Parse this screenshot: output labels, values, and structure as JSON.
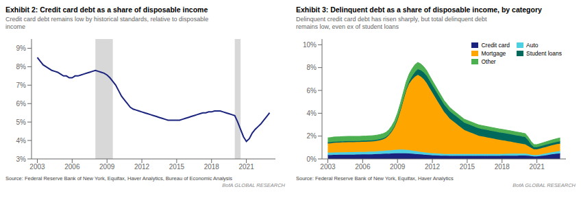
{
  "chart_data": [
    {
      "type": "line",
      "title": "Exhibit 2: Credit card debt as a share of disposable income",
      "subtitle": "Credit card debt remains low by historical standards, relative to disposable\nincome",
      "annotations": [
        "Source: Federal Reserve Bank of New York, Equifax, Haver Analytics, Bureau of Economic Analysis",
        "BofA GLOBAL RESEARCH"
      ],
      "color": "#1a237e",
      "grid": false,
      "xlim": [
        2002.5,
        2023.5
      ],
      "xticks": [
        2003,
        2006,
        2009,
        2012,
        2015,
        2018,
        2021
      ],
      "ylim": [
        3,
        9.5
      ],
      "yticks": [
        {
          "value": 3,
          "label": "3%"
        },
        {
          "value": 4,
          "label": "4%"
        },
        {
          "value": 5,
          "label": "5%"
        },
        {
          "value": 6,
          "label": "6%"
        },
        {
          "value": 7,
          "label": "7%"
        },
        {
          "value": 8,
          "label": "8%"
        },
        {
          "value": 9,
          "label": "9%"
        }
      ],
      "recession_bands": [
        [
          2008.0,
          2009.5
        ],
        [
          2020.0,
          2020.5
        ]
      ],
      "x": [
        2003,
        2003.25,
        2003.5,
        2003.75,
        2004,
        2004.25,
        2004.5,
        2004.75,
        2005,
        2005.25,
        2005.5,
        2005.75,
        2006,
        2006.25,
        2006.5,
        2006.75,
        2007,
        2007.25,
        2007.5,
        2007.75,
        2008,
        2008.25,
        2008.5,
        2008.75,
        2009,
        2009.25,
        2009.5,
        2009.75,
        2010,
        2010.25,
        2010.5,
        2010.75,
        2011,
        2011.25,
        2011.5,
        2011.75,
        2012,
        2012.25,
        2012.5,
        2012.75,
        2013,
        2013.25,
        2013.5,
        2013.75,
        2014,
        2014.25,
        2014.5,
        2014.75,
        2015,
        2015.25,
        2015.5,
        2015.75,
        2016,
        2016.25,
        2016.5,
        2016.75,
        2017,
        2017.25,
        2017.5,
        2017.75,
        2018,
        2018.25,
        2018.5,
        2018.75,
        2019,
        2019.25,
        2019.5,
        2019.75,
        2020,
        2020.25,
        2020.5,
        2020.75,
        2021,
        2021.25,
        2021.5,
        2021.75,
        2022,
        2022.25,
        2022.5,
        2022.75,
        2023
      ],
      "values": [
        8.5,
        8.3,
        8.1,
        8.0,
        7.9,
        7.8,
        7.75,
        7.7,
        7.6,
        7.5,
        7.5,
        7.4,
        7.4,
        7.5,
        7.5,
        7.55,
        7.6,
        7.65,
        7.7,
        7.75,
        7.8,
        7.75,
        7.7,
        7.65,
        7.55,
        7.4,
        7.2,
        7.0,
        6.7,
        6.4,
        6.2,
        6.0,
        5.8,
        5.7,
        5.65,
        5.6,
        5.55,
        5.5,
        5.45,
        5.4,
        5.35,
        5.3,
        5.25,
        5.2,
        5.15,
        5.1,
        5.1,
        5.1,
        5.1,
        5.1,
        5.15,
        5.2,
        5.25,
        5.3,
        5.35,
        5.4,
        5.45,
        5.5,
        5.5,
        5.55,
        5.55,
        5.6,
        5.6,
        5.6,
        5.55,
        5.5,
        5.45,
        5.4,
        5.35,
        5.0,
        4.6,
        4.2,
        3.95,
        4.1,
        4.4,
        4.6,
        4.75,
        4.9,
        5.1,
        5.3,
        5.5
      ]
    },
    {
      "type": "area",
      "stacked": true,
      "title": "Exhibit 3: Delinquent debt as a share of disposable income, by category",
      "subtitle": "Delinquent credit card debt has risen sharply, but total delinquent debt\nremains low, even ex of student loans",
      "annotations": [
        "Source: Federal Reserve Bank of New York, Equifax, Haver Analytics",
        "BofA GLOBAL RESEARCH"
      ],
      "legend": "upper right",
      "xlim": [
        2002.5,
        2023.5
      ],
      "xticks": [
        2003,
        2006,
        2009,
        2012,
        2015,
        2018,
        2021
      ],
      "ylim": [
        0,
        10.5
      ],
      "yticks": [
        {
          "value": 0,
          "label": "0%"
        },
        {
          "value": 2,
          "label": "2%"
        },
        {
          "value": 4,
          "label": "4%"
        },
        {
          "value": 6,
          "label": "6%"
        },
        {
          "value": 8,
          "label": "8%"
        },
        {
          "value": 10,
          "label": "10%"
        }
      ],
      "x": [
        2003,
        2003.25,
        2003.5,
        2003.75,
        2004,
        2004.25,
        2004.5,
        2004.75,
        2005,
        2005.25,
        2005.5,
        2005.75,
        2006,
        2006.25,
        2006.5,
        2006.75,
        2007,
        2007.25,
        2007.5,
        2007.75,
        2008,
        2008.25,
        2008.5,
        2008.75,
        2009,
        2009.25,
        2009.5,
        2009.75,
        2010,
        2010.25,
        2010.5,
        2010.75,
        2011,
        2011.25,
        2011.5,
        2011.75,
        2012,
        2012.25,
        2012.5,
        2012.75,
        2013,
        2013.25,
        2013.5,
        2013.75,
        2014,
        2014.25,
        2014.5,
        2014.75,
        2015,
        2015.25,
        2015.5,
        2015.75,
        2016,
        2016.25,
        2016.5,
        2016.75,
        2017,
        2017.25,
        2017.5,
        2017.75,
        2018,
        2018.25,
        2018.5,
        2018.75,
        2019,
        2019.25,
        2019.5,
        2019.75,
        2020,
        2020.25,
        2020.5,
        2020.75,
        2021,
        2021.25,
        2021.5,
        2021.75,
        2022,
        2022.25,
        2022.5,
        2022.75,
        2023
      ],
      "series": [
        {
          "name": "Credit card",
          "color": "#1a237e",
          "values": [
            0.35,
            0.35,
            0.36,
            0.36,
            0.37,
            0.37,
            0.37,
            0.38,
            0.38,
            0.38,
            0.39,
            0.39,
            0.4,
            0.4,
            0.41,
            0.41,
            0.42,
            0.43,
            0.44,
            0.45,
            0.46,
            0.47,
            0.48,
            0.49,
            0.5,
            0.5,
            0.5,
            0.49,
            0.48,
            0.46,
            0.44,
            0.42,
            0.4,
            0.38,
            0.36,
            0.34,
            0.32,
            0.31,
            0.3,
            0.29,
            0.28,
            0.28,
            0.27,
            0.27,
            0.27,
            0.27,
            0.27,
            0.27,
            0.27,
            0.27,
            0.27,
            0.27,
            0.27,
            0.27,
            0.27,
            0.27,
            0.27,
            0.27,
            0.27,
            0.27,
            0.28,
            0.28,
            0.28,
            0.29,
            0.29,
            0.29,
            0.3,
            0.3,
            0.3,
            0.28,
            0.25,
            0.22,
            0.22,
            0.25,
            0.28,
            0.32,
            0.36,
            0.4,
            0.43,
            0.46,
            0.48
          ]
        },
        {
          "name": "Auto",
          "color": "#4dd0e1",
          "values": [
            0.2,
            0.2,
            0.21,
            0.21,
            0.21,
            0.22,
            0.22,
            0.22,
            0.22,
            0.22,
            0.22,
            0.22,
            0.22,
            0.22,
            0.23,
            0.23,
            0.23,
            0.24,
            0.25,
            0.26,
            0.27,
            0.28,
            0.29,
            0.3,
            0.31,
            0.32,
            0.32,
            0.31,
            0.3,
            0.28,
            0.26,
            0.24,
            0.22,
            0.21,
            0.2,
            0.19,
            0.18,
            0.18,
            0.17,
            0.17,
            0.16,
            0.16,
            0.16,
            0.16,
            0.16,
            0.16,
            0.16,
            0.16,
            0.16,
            0.16,
            0.16,
            0.16,
            0.16,
            0.16,
            0.16,
            0.16,
            0.16,
            0.16,
            0.16,
            0.16,
            0.16,
            0.17,
            0.17,
            0.17,
            0.17,
            0.17,
            0.17,
            0.17,
            0.17,
            0.15,
            0.13,
            0.12,
            0.12,
            0.13,
            0.15,
            0.16,
            0.17,
            0.18,
            0.19,
            0.2,
            0.21
          ]
        },
        {
          "name": "Mortgage",
          "color": "#ffa500",
          "values": [
            0.8,
            0.82,
            0.84,
            0.85,
            0.85,
            0.86,
            0.87,
            0.87,
            0.87,
            0.87,
            0.87,
            0.87,
            0.88,
            0.88,
            0.88,
            0.89,
            0.9,
            0.92,
            0.95,
            1.0,
            1.1,
            1.3,
            1.6,
            2.0,
            2.6,
            3.4,
            4.3,
            5.2,
            5.8,
            6.2,
            6.5,
            6.7,
            6.6,
            6.4,
            6.1,
            5.7,
            5.3,
            4.9,
            4.5,
            4.1,
            3.7,
            3.4,
            3.1,
            2.9,
            2.7,
            2.5,
            2.3,
            2.1,
            2.0,
            1.9,
            1.8,
            1.7,
            1.6,
            1.55,
            1.5,
            1.45,
            1.4,
            1.35,
            1.3,
            1.25,
            1.2,
            1.15,
            1.1,
            1.05,
            1.0,
            0.95,
            0.9,
            0.85,
            0.8,
            0.7,
            0.6,
            0.5,
            0.5,
            0.52,
            0.54,
            0.56,
            0.58,
            0.6,
            0.62,
            0.64,
            0.65
          ]
        },
        {
          "name": "Student loans",
          "color": "#00695c",
          "values": [
            0.1,
            0.1,
            0.1,
            0.1,
            0.1,
            0.1,
            0.1,
            0.1,
            0.1,
            0.1,
            0.1,
            0.1,
            0.1,
            0.1,
            0.1,
            0.1,
            0.1,
            0.1,
            0.1,
            0.1,
            0.1,
            0.1,
            0.1,
            0.1,
            0.1,
            0.1,
            0.1,
            0.1,
            0.2,
            0.3,
            0.4,
            0.5,
            0.55,
            0.6,
            0.65,
            0.65,
            0.65,
            0.65,
            0.65,
            0.65,
            0.65,
            0.65,
            0.65,
            0.65,
            0.65,
            0.65,
            0.65,
            0.65,
            0.65,
            0.65,
            0.65,
            0.65,
            0.65,
            0.65,
            0.65,
            0.65,
            0.65,
            0.65,
            0.65,
            0.65,
            0.65,
            0.65,
            0.65,
            0.65,
            0.65,
            0.65,
            0.65,
            0.65,
            0.65,
            0.5,
            0.3,
            0.2,
            0.2,
            0.2,
            0.2,
            0.2,
            0.2,
            0.2,
            0.2,
            0.2,
            0.2
          ]
        },
        {
          "name": "Other",
          "color": "#4caf50",
          "values": [
            0.4,
            0.4,
            0.41,
            0.41,
            0.41,
            0.41,
            0.41,
            0.41,
            0.41,
            0.41,
            0.4,
            0.4,
            0.4,
            0.4,
            0.4,
            0.4,
            0.4,
            0.4,
            0.4,
            0.4,
            0.4,
            0.4,
            0.42,
            0.45,
            0.5,
            0.55,
            0.6,
            0.65,
            0.65,
            0.65,
            0.65,
            0.6,
            0.55,
            0.5,
            0.45,
            0.42,
            0.4,
            0.38,
            0.36,
            0.35,
            0.34,
            0.33,
            0.32,
            0.31,
            0.3,
            0.3,
            0.3,
            0.3,
            0.3,
            0.3,
            0.3,
            0.3,
            0.3,
            0.3,
            0.3,
            0.3,
            0.3,
            0.3,
            0.3,
            0.3,
            0.3,
            0.3,
            0.3,
            0.3,
            0.3,
            0.3,
            0.3,
            0.3,
            0.3,
            0.28,
            0.25,
            0.22,
            0.22,
            0.23,
            0.24,
            0.25,
            0.26,
            0.27,
            0.28,
            0.29,
            0.3
          ]
        }
      ]
    }
  ]
}
